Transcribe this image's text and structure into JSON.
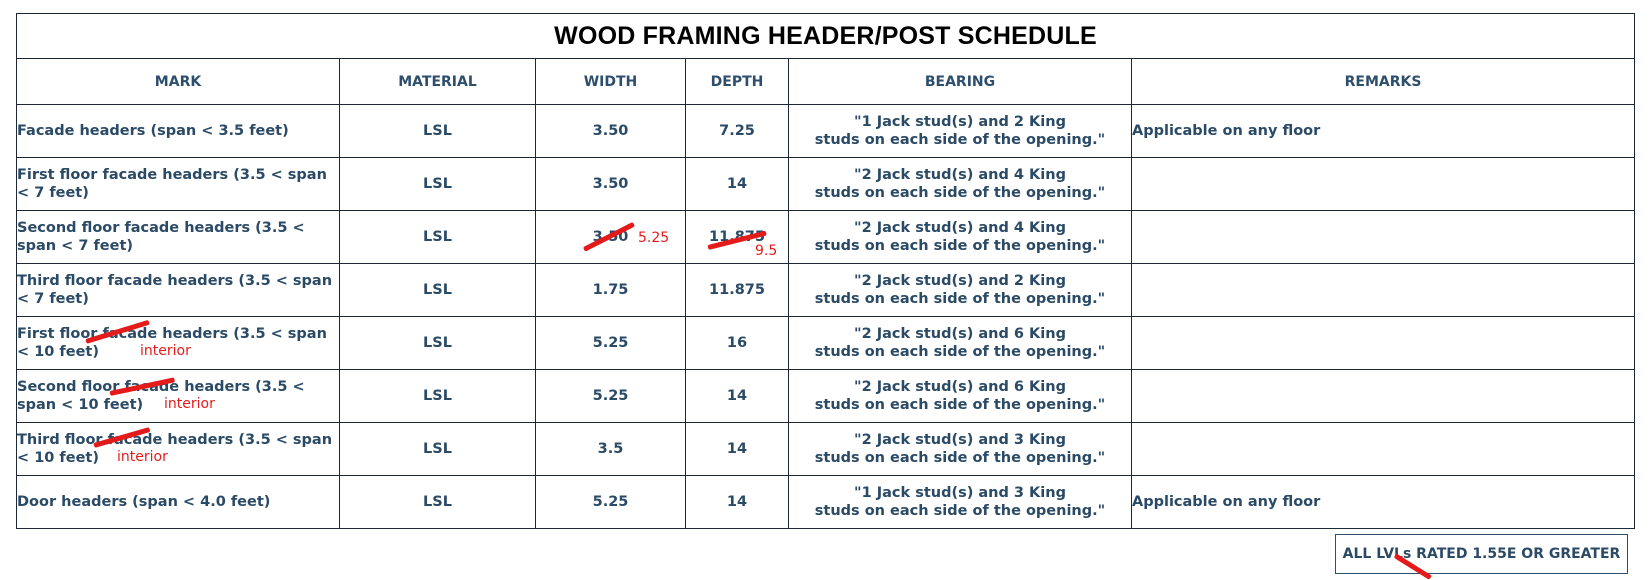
{
  "title": "WOOD FRAMING HEADER/POST SCHEDULE",
  "columns": [
    "MARK",
    "MATERIAL",
    "WIDTH",
    "DEPTH",
    "BEARING",
    "REMARKS"
  ],
  "rows": [
    {
      "mark": "Facade headers (span < 3.5 feet)",
      "material": "LSL",
      "width": "3.50",
      "depth": "7.25",
      "bearing_1": "\"1 Jack stud(s) and 2 King",
      "bearing_2": "studs on each side of the opening.\"",
      "remarks": "Applicable on any floor"
    },
    {
      "mark": "First floor facade headers (3.5 < span < 7 feet)",
      "material": "LSL",
      "width": "3.50",
      "depth": "14",
      "bearing_1": "\"2 Jack stud(s) and 4 King",
      "bearing_2": "studs on each side of the opening.\"",
      "remarks": ""
    },
    {
      "mark": "Second floor facade headers (3.5 < span < 7 feet)",
      "material": "LSL",
      "width": "3.50",
      "depth": "11.875",
      "bearing_1": "\"2 Jack stud(s) and 4 King",
      "bearing_2": "studs on each side of the opening.\"",
      "remarks": "",
      "width_markup": "5.25",
      "depth_markup": "9.5"
    },
    {
      "mark": "Third floor facade headers (3.5 < span < 7 feet)",
      "material": "LSL",
      "width": "1.75",
      "depth": "11.875",
      "bearing_1": "\"2 Jack stud(s) and 2 King",
      "bearing_2": "studs on each side of the opening.\"",
      "remarks": ""
    },
    {
      "mark": "First floor facade headers (3.5 < span < 10 feet)",
      "material": "LSL",
      "width": "5.25",
      "depth": "16",
      "bearing_1": "\"2 Jack stud(s) and 6 King",
      "bearing_2": "studs on each side of the opening.\"",
      "remarks": "",
      "mark_markup": "interior"
    },
    {
      "mark": "Second floor facade headers (3.5 < span < 10 feet)",
      "material": "LSL",
      "width": "5.25",
      "depth": "14",
      "bearing_1": "\"2 Jack stud(s) and 6 King",
      "bearing_2": "studs on each side of the opening.\"",
      "remarks": "",
      "mark_markup": "interior"
    },
    {
      "mark": "Third floor facade headers (3.5 < span < 10 feet)",
      "material": "LSL",
      "width": "3.5",
      "depth": "14",
      "bearing_1": "\"2 Jack stud(s) and 3 King",
      "bearing_2": "studs on each side of the opening.\"",
      "remarks": "",
      "mark_markup": "interior"
    },
    {
      "mark": "Door headers (span < 4.0 feet)",
      "material": "LSL",
      "width": "5.25",
      "depth": "14",
      "bearing_1": "\"1 Jack stud(s) and 3 King",
      "bearing_2": "studs on each side of the opening.\"",
      "remarks": "Applicable on any floor"
    }
  ],
  "note": "ALL LVLs RATED 1.55E OR GREATER",
  "markup_color": "#e41b1b"
}
